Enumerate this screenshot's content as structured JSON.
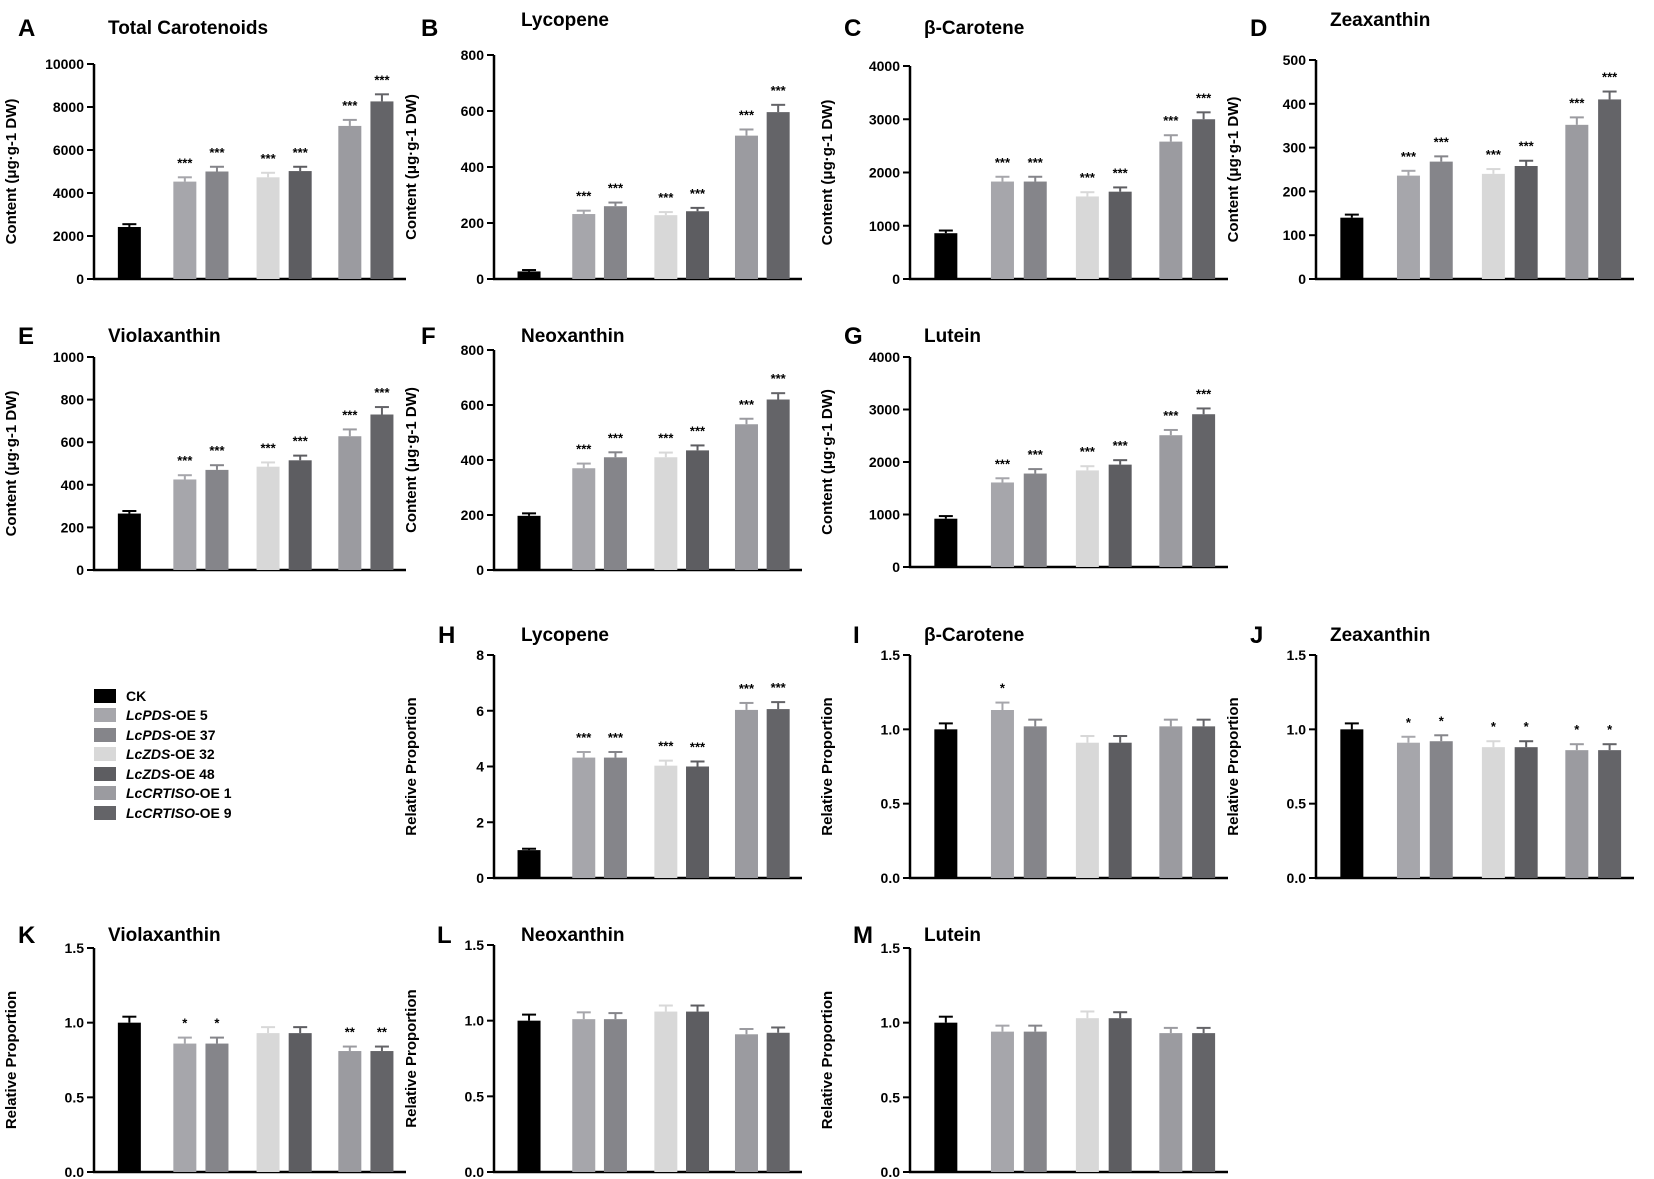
{
  "colors": {
    "CK": "#000000",
    "PDS5": "#a6a6ab",
    "PDS37": "#85858a",
    "ZDS32": "#d8d8d8",
    "ZDS48": "#5d5d61",
    "CRT1": "#9b9ba0",
    "CRT9": "#646468"
  },
  "legend": {
    "items": [
      {
        "name": "CK",
        "italic": "",
        "rest": "CK",
        "color": "#000000"
      },
      {
        "name": "LcPDS-OE 5",
        "italic": "LcPDS",
        "rest": "-OE 5",
        "color": "#a6a6ab"
      },
      {
        "name": "LcPDS-OE 37",
        "italic": "LcPDS",
        "rest": "-OE 37",
        "color": "#85858a"
      },
      {
        "name": "LcZDS-OE 32",
        "italic": "LcZDS",
        "rest": "-OE 32",
        "color": "#d8d8d8"
      },
      {
        "name": "LcZDS-OE 48",
        "italic": "LcZDS",
        "rest": "-OE 48",
        "color": "#5d5d61"
      },
      {
        "name": "LcCRTISO-OE 1",
        "italic": "LcCRTISO",
        "rest": "-OE 1",
        "color": "#9b9ba0"
      },
      {
        "name": "LcCRTISO-OE 9",
        "italic": "LcCRTISO",
        "rest": "-OE 9",
        "color": "#646468"
      }
    ]
  },
  "chart_data": [
    {
      "panel": "A",
      "type": "bar",
      "title": "Total Carotenoids",
      "ylabel": "Content (μg·g-1 DW)",
      "ylim": [
        0,
        10000
      ],
      "ticks": [
        0,
        2000,
        4000,
        6000,
        8000,
        10000
      ],
      "categories": [
        "CK",
        "LcPDS-OE 5",
        "LcPDS-OE 37",
        "LcZDS-OE 32",
        "LcZDS-OE 48",
        "LcCRTISO-OE 1",
        "LcCRTISO-OE 9"
      ],
      "values": [
        2420,
        4530,
        5000,
        4730,
        5020,
        7120,
        8260
      ],
      "errors": [
        130,
        200,
        220,
        210,
        200,
        280,
        330
      ],
      "significance": [
        "",
        "***",
        "***",
        "***",
        "***",
        "***",
        "***"
      ]
    },
    {
      "panel": "B",
      "type": "bar",
      "title": "Lycopene",
      "ylabel": "Content (μg·g-1 DW)",
      "ylim": [
        0,
        800
      ],
      "ticks": [
        0,
        200,
        400,
        600,
        800
      ],
      "categories": [
        "CK",
        "LcPDS-OE 5",
        "LcPDS-OE 37",
        "LcZDS-OE 32",
        "LcZDS-OE 48",
        "LcCRTISO-OE 1",
        "LcCRTISO-OE 9"
      ],
      "values": [
        27,
        232,
        260,
        228,
        242,
        512,
        596
      ],
      "errors": [
        5,
        12,
        13,
        11,
        12,
        22,
        26
      ],
      "significance": [
        "",
        "***",
        "***",
        "***",
        "***",
        "***",
        "***"
      ]
    },
    {
      "panel": "C",
      "type": "bar",
      "title": "β-Carotene",
      "ylabel": "Content (μg·g-1 DW)",
      "ylim": [
        0,
        4000
      ],
      "ticks": [
        0,
        1000,
        2000,
        3000,
        4000
      ],
      "categories": [
        "CK",
        "LcPDS-OE 5",
        "LcPDS-OE 37",
        "LcZDS-OE 32",
        "LcZDS-OE 48",
        "LcCRTISO-OE 1",
        "LcCRTISO-OE 9"
      ],
      "values": [
        860,
        1830,
        1830,
        1550,
        1640,
        2580,
        3000
      ],
      "errors": [
        50,
        90,
        90,
        80,
        80,
        120,
        130
      ],
      "significance": [
        "",
        "***",
        "***",
        "***",
        "***",
        "***",
        "***"
      ]
    },
    {
      "panel": "D",
      "type": "bar",
      "title": "Zeaxanthin",
      "ylabel": "Content (μg·g-1 DW)",
      "ylim": [
        0,
        500
      ],
      "ticks": [
        0,
        100,
        200,
        300,
        400,
        500
      ],
      "categories": [
        "CK",
        "LcPDS-OE 5",
        "LcPDS-OE 37",
        "LcZDS-OE 32",
        "LcZDS-OE 48",
        "LcCRTISO-OE 1",
        "LcCRTISO-OE 9"
      ],
      "values": [
        140,
        236,
        268,
        240,
        258,
        352,
        410
      ],
      "errors": [
        7,
        11,
        12,
        11,
        12,
        17,
        18
      ],
      "significance": [
        "",
        "***",
        "***",
        "***",
        "***",
        "***",
        "***"
      ]
    },
    {
      "panel": "E",
      "type": "bar",
      "title": "Violaxanthin",
      "ylabel": "Content (μg·g-1 DW)",
      "ylim": [
        0,
        1000
      ],
      "ticks": [
        0,
        200,
        400,
        600,
        800,
        1000
      ],
      "categories": [
        "CK",
        "LcPDS-OE 5",
        "LcPDS-OE 37",
        "LcZDS-OE 32",
        "LcZDS-OE 48",
        "LcCRTISO-OE 1",
        "LcCRTISO-OE 9"
      ],
      "values": [
        265,
        425,
        470,
        485,
        515,
        628,
        730
      ],
      "errors": [
        12,
        20,
        22,
        20,
        22,
        32,
        35
      ],
      "significance": [
        "",
        "***",
        "***",
        "***",
        "***",
        "***",
        "***"
      ]
    },
    {
      "panel": "F",
      "type": "bar",
      "title": "Neoxanthin",
      "ylabel": "Content (μg·g-1 DW)",
      "ylim": [
        0,
        800
      ],
      "ticks": [
        0,
        200,
        400,
        600,
        800
      ],
      "categories": [
        "CK",
        "LcPDS-OE 5",
        "LcPDS-OE 37",
        "LcZDS-OE 32",
        "LcZDS-OE 48",
        "LcCRTISO-OE 1",
        "LcCRTISO-OE 9"
      ],
      "values": [
        197,
        370,
        410,
        410,
        435,
        530,
        620
      ],
      "errors": [
        9,
        17,
        18,
        17,
        18,
        20,
        23
      ],
      "significance": [
        "",
        "***",
        "***",
        "***",
        "***",
        "***",
        "***"
      ]
    },
    {
      "panel": "G",
      "type": "bar",
      "title": "Lutein",
      "ylabel": "Content (μg·g-1 DW)",
      "ylim": [
        0,
        4000
      ],
      "ticks": [
        0,
        1000,
        2000,
        3000,
        4000
      ],
      "categories": [
        "CK",
        "LcPDS-OE 5",
        "LcPDS-OE 37",
        "LcZDS-OE 32",
        "LcZDS-OE 48",
        "LcCRTISO-OE 1",
        "LcCRTISO-OE 9"
      ],
      "values": [
        920,
        1610,
        1780,
        1840,
        1950,
        2510,
        2910
      ],
      "errors": [
        50,
        80,
        85,
        80,
        85,
        100,
        110
      ],
      "significance": [
        "",
        "***",
        "***",
        "***",
        "***",
        "***",
        "***"
      ]
    },
    {
      "panel": "H",
      "type": "bar",
      "title": "Lycopene",
      "ylabel": "Relative Proportion",
      "ylim": [
        0,
        8
      ],
      "ticks": [
        0,
        2,
        4,
        6,
        8
      ],
      "categories": [
        "CK",
        "LcPDS-OE 5",
        "LcPDS-OE 37",
        "LcZDS-OE 32",
        "LcZDS-OE 48",
        "LcCRTISO-OE 1",
        "LcCRTISO-OE 9"
      ],
      "values": [
        1.0,
        4.32,
        4.32,
        4.03,
        4.0,
        6.03,
        6.06
      ],
      "errors": [
        0.05,
        0.2,
        0.2,
        0.18,
        0.18,
        0.25,
        0.25
      ],
      "significance": [
        "",
        "***",
        "***",
        "***",
        "***",
        "***",
        "***"
      ]
    },
    {
      "panel": "I",
      "type": "bar",
      "title": "β-Carotene",
      "ylabel": "Relative Proportion",
      "ylim": [
        0,
        1.5
      ],
      "ticks": [
        0.0,
        0.5,
        1.0,
        1.5
      ],
      "categories": [
        "CK",
        "LcPDS-OE 5",
        "LcPDS-OE 37",
        "LcZDS-OE 32",
        "LcZDS-OE 48",
        "LcCRTISO-OE 1",
        "LcCRTISO-OE 9"
      ],
      "values": [
        1.0,
        1.13,
        1.02,
        0.91,
        0.91,
        1.02,
        1.02
      ],
      "errors": [
        0.04,
        0.05,
        0.045,
        0.045,
        0.045,
        0.045,
        0.045
      ],
      "significance": [
        "",
        "*",
        "",
        "",
        "",
        "",
        ""
      ]
    },
    {
      "panel": "J",
      "type": "bar",
      "title": "Zeaxanthin",
      "ylabel": "Relative Proportion",
      "ylim": [
        0,
        1.5
      ],
      "ticks": [
        0.0,
        0.5,
        1.0,
        1.5
      ],
      "categories": [
        "CK",
        "LcPDS-OE 5",
        "LcPDS-OE 37",
        "LcZDS-OE 32",
        "LcZDS-OE 48",
        "LcCRTISO-OE 1",
        "LcCRTISO-OE 9"
      ],
      "values": [
        1.0,
        0.91,
        0.92,
        0.88,
        0.88,
        0.86,
        0.86
      ],
      "errors": [
        0.04,
        0.04,
        0.04,
        0.04,
        0.04,
        0.04,
        0.04
      ],
      "significance": [
        "",
        "*",
        "*",
        "*",
        "*",
        "*",
        "*"
      ]
    },
    {
      "panel": "K",
      "type": "bar",
      "title": "Violaxanthin",
      "ylabel": "Relative Proportion",
      "ylim": [
        0,
        1.5
      ],
      "ticks": [
        0.0,
        0.5,
        1.0,
        1.5
      ],
      "categories": [
        "CK",
        "LcPDS-OE 5",
        "LcPDS-OE 37",
        "LcZDS-OE 32",
        "LcZDS-OE 48",
        "LcCRTISO-OE 1",
        "LcCRTISO-OE 9"
      ],
      "values": [
        1.0,
        0.86,
        0.86,
        0.93,
        0.93,
        0.81,
        0.81
      ],
      "errors": [
        0.04,
        0.04,
        0.04,
        0.04,
        0.04,
        0.03,
        0.03
      ],
      "significance": [
        "",
        "*",
        "*",
        "",
        "",
        "**",
        "**"
      ]
    },
    {
      "panel": "L",
      "type": "bar",
      "title": "Neoxanthin",
      "ylabel": "Relative Proportion",
      "ylim": [
        0,
        1.5
      ],
      "ticks": [
        0.0,
        0.5,
        1.0,
        1.5
      ],
      "categories": [
        "CK",
        "LcPDS-OE 5",
        "LcPDS-OE 37",
        "LcZDS-OE 32",
        "LcZDS-OE 48",
        "LcCRTISO-OE 1",
        "LcCRTISO-OE 9"
      ],
      "values": [
        1.0,
        1.01,
        1.01,
        1.06,
        1.06,
        0.91,
        0.92
      ],
      "errors": [
        0.04,
        0.045,
        0.04,
        0.04,
        0.04,
        0.035,
        0.035
      ],
      "significance": [
        "",
        "",
        "",
        "",
        "",
        "",
        ""
      ]
    },
    {
      "panel": "M",
      "type": "bar",
      "title": "Lutein",
      "ylabel": "Relative Proportion",
      "ylim": [
        0,
        1.5
      ],
      "ticks": [
        0.0,
        0.5,
        1.0,
        1.5
      ],
      "categories": [
        "CK",
        "LcPDS-OE 5",
        "LcPDS-OE 37",
        "LcZDS-OE 32",
        "LcZDS-OE 48",
        "LcCRTISO-OE 1",
        "LcCRTISO-OE 9"
      ],
      "values": [
        1.0,
        0.94,
        0.94,
        1.03,
        1.03,
        0.93,
        0.93
      ],
      "errors": [
        0.04,
        0.04,
        0.04,
        0.045,
        0.04,
        0.035,
        0.035
      ],
      "significance": [
        "",
        "",
        "",
        "",
        "",
        "",
        ""
      ]
    }
  ]
}
